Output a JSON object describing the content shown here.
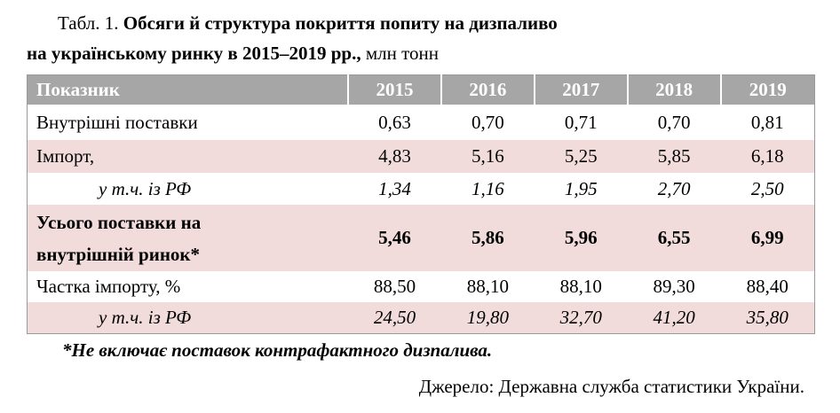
{
  "title": {
    "prefix": "Табл. 1.",
    "bold_line1": "Обсяги й структура покриття попиту на дизпаливо",
    "bold_line2": "на українському ринку в 2015–2019 рр.,",
    "unit": "млн тонн"
  },
  "table": {
    "header": [
      "Показник",
      "2015",
      "2016",
      "2017",
      "2018",
      "2019"
    ],
    "rows": [
      {
        "label": [
          "Внутрішні поставки"
        ],
        "style": "plain",
        "cells": [
          "0,63",
          "0,70",
          "0,71",
          "0,70",
          "0,81"
        ]
      },
      {
        "label": [
          "Імпорт,"
        ],
        "style": "plain",
        "cells": [
          "4,83",
          "5,16",
          "5,25",
          "5,85",
          "6,18"
        ]
      },
      {
        "label": [
          "у т.ч. із РФ"
        ],
        "style": "italic",
        "cells": [
          "1,34",
          "1,16",
          "1,95",
          "2,70",
          "2,50"
        ]
      },
      {
        "label": [
          "Усього поставки на",
          "внутрішній ринок*"
        ],
        "style": "bold",
        "cells": [
          "5,46",
          "5,86",
          "5,96",
          "6,55",
          "6,99"
        ]
      },
      {
        "label": [
          "Частка імпорту, %"
        ],
        "style": "plain",
        "cells": [
          "88,50",
          "88,10",
          "88,10",
          "89,30",
          "88,40"
        ]
      },
      {
        "label": [
          "у т.ч. із РФ"
        ],
        "style": "italic",
        "cells": [
          "24,50",
          "19,80",
          "32,70",
          "41,20",
          "35,80"
        ]
      }
    ]
  },
  "footnote": "*Не включає поставок контрафактного дизпалива.",
  "source": "Джерело: Державна служба статистики України."
}
